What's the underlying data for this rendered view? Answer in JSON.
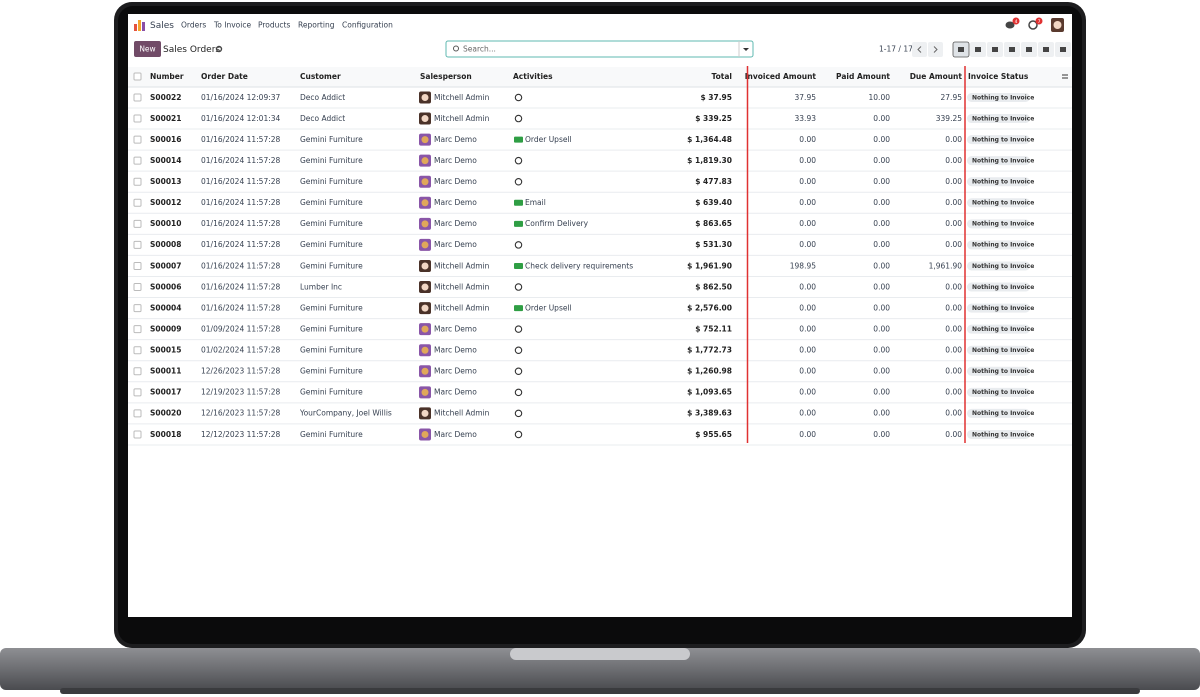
{
  "nav": {
    "app": "Sales",
    "menu": [
      "Orders",
      "To Invoice",
      "Products",
      "Reporting",
      "Configuration"
    ],
    "badges": [
      "4",
      "7"
    ]
  },
  "toolbar": {
    "new": "New",
    "title": "Sales Orders",
    "search": "Search...",
    "pager": "1-17 / 17"
  },
  "table": {
    "headers": [
      "Number",
      "Order Date",
      "Customer",
      "Salesperson",
      "Activities",
      "Total",
      "Invoiced Amount",
      "Paid Amount",
      "Due Amount",
      "Invoice Status"
    ],
    "rows": [
      [
        "S00022",
        "01/16/2024 12:09:37",
        "Deco Addict",
        "Mitchell Admin",
        null,
        "$ 37.95",
        "37.95",
        "10.00",
        "27.95",
        "Nothing to Invoice"
      ],
      [
        "S00021",
        "01/16/2024 12:01:34",
        "Deco Addict",
        "Mitchell Admin",
        null,
        "$ 339.25",
        "33.93",
        "0.00",
        "339.25",
        "Nothing to Invoice"
      ],
      [
        "S00016",
        "01/16/2024 11:57:28",
        "Gemini Furniture",
        "Marc Demo",
        "Order Upsell",
        "$ 1,364.48",
        "0.00",
        "0.00",
        "0.00",
        "Nothing to Invoice"
      ],
      [
        "S00014",
        "01/16/2024 11:57:28",
        "Gemini Furniture",
        "Marc Demo",
        null,
        "$ 1,819.30",
        "0.00",
        "0.00",
        "0.00",
        "Nothing to Invoice"
      ],
      [
        "S00013",
        "01/16/2024 11:57:28",
        "Gemini Furniture",
        "Marc Demo",
        null,
        "$ 477.83",
        "0.00",
        "0.00",
        "0.00",
        "Nothing to Invoice"
      ],
      [
        "S00012",
        "01/16/2024 11:57:28",
        "Gemini Furniture",
        "Marc Demo",
        "Email",
        "$ 639.40",
        "0.00",
        "0.00",
        "0.00",
        "Nothing to Invoice"
      ],
      [
        "S00010",
        "01/16/2024 11:57:28",
        "Gemini Furniture",
        "Marc Demo",
        "Confirm Delivery",
        "$ 863.65",
        "0.00",
        "0.00",
        "0.00",
        "Nothing to Invoice"
      ],
      [
        "S00008",
        "01/16/2024 11:57:28",
        "Gemini Furniture",
        "Marc Demo",
        null,
        "$ 531.30",
        "0.00",
        "0.00",
        "0.00",
        "Nothing to Invoice"
      ],
      [
        "S00007",
        "01/16/2024 11:57:28",
        "Gemini Furniture",
        "Mitchell Admin",
        "Check delivery requirements",
        "$ 1,961.90",
        "198.95",
        "0.00",
        "1,961.90",
        "Nothing to Invoice"
      ],
      [
        "S00006",
        "01/16/2024 11:57:28",
        "Lumber Inc",
        "Mitchell Admin",
        null,
        "$ 862.50",
        "0.00",
        "0.00",
        "0.00",
        "Nothing to Invoice"
      ],
      [
        "S00004",
        "01/16/2024 11:57:28",
        "Gemini Furniture",
        "Mitchell Admin",
        "Order Upsell",
        "$ 2,576.00",
        "0.00",
        "0.00",
        "0.00",
        "Nothing to Invoice"
      ],
      [
        "S00009",
        "01/09/2024 11:57:28",
        "Gemini Furniture",
        "Marc Demo",
        null,
        "$ 752.11",
        "0.00",
        "0.00",
        "0.00",
        "Nothing to Invoice"
      ],
      [
        "S00015",
        "01/02/2024 11:57:28",
        "Gemini Furniture",
        "Marc Demo",
        null,
        "$ 1,772.73",
        "0.00",
        "0.00",
        "0.00",
        "Nothing to Invoice"
      ],
      [
        "S00011",
        "12/26/2023 11:57:28",
        "Gemini Furniture",
        "Marc Demo",
        null,
        "$ 1,260.98",
        "0.00",
        "0.00",
        "0.00",
        "Nothing to Invoice"
      ],
      [
        "S00017",
        "12/19/2023 11:57:28",
        "Gemini Furniture",
        "Marc Demo",
        null,
        "$ 1,093.65",
        "0.00",
        "0.00",
        "0.00",
        "Nothing to Invoice"
      ],
      [
        "S00020",
        "12/16/2023 11:57:28",
        "YourCompany, Joel Willis",
        "Mitchell Admin",
        null,
        "$ 3,389.63",
        "0.00",
        "0.00",
        "0.00",
        "Nothing to Invoice"
      ],
      [
        "S00018",
        "12/12/2023 11:57:28",
        "Gemini Furniture",
        "Marc Demo",
        null,
        "$ 955.65",
        "0.00",
        "0.00",
        "0.00",
        "Nothing to Invoice"
      ]
    ]
  }
}
